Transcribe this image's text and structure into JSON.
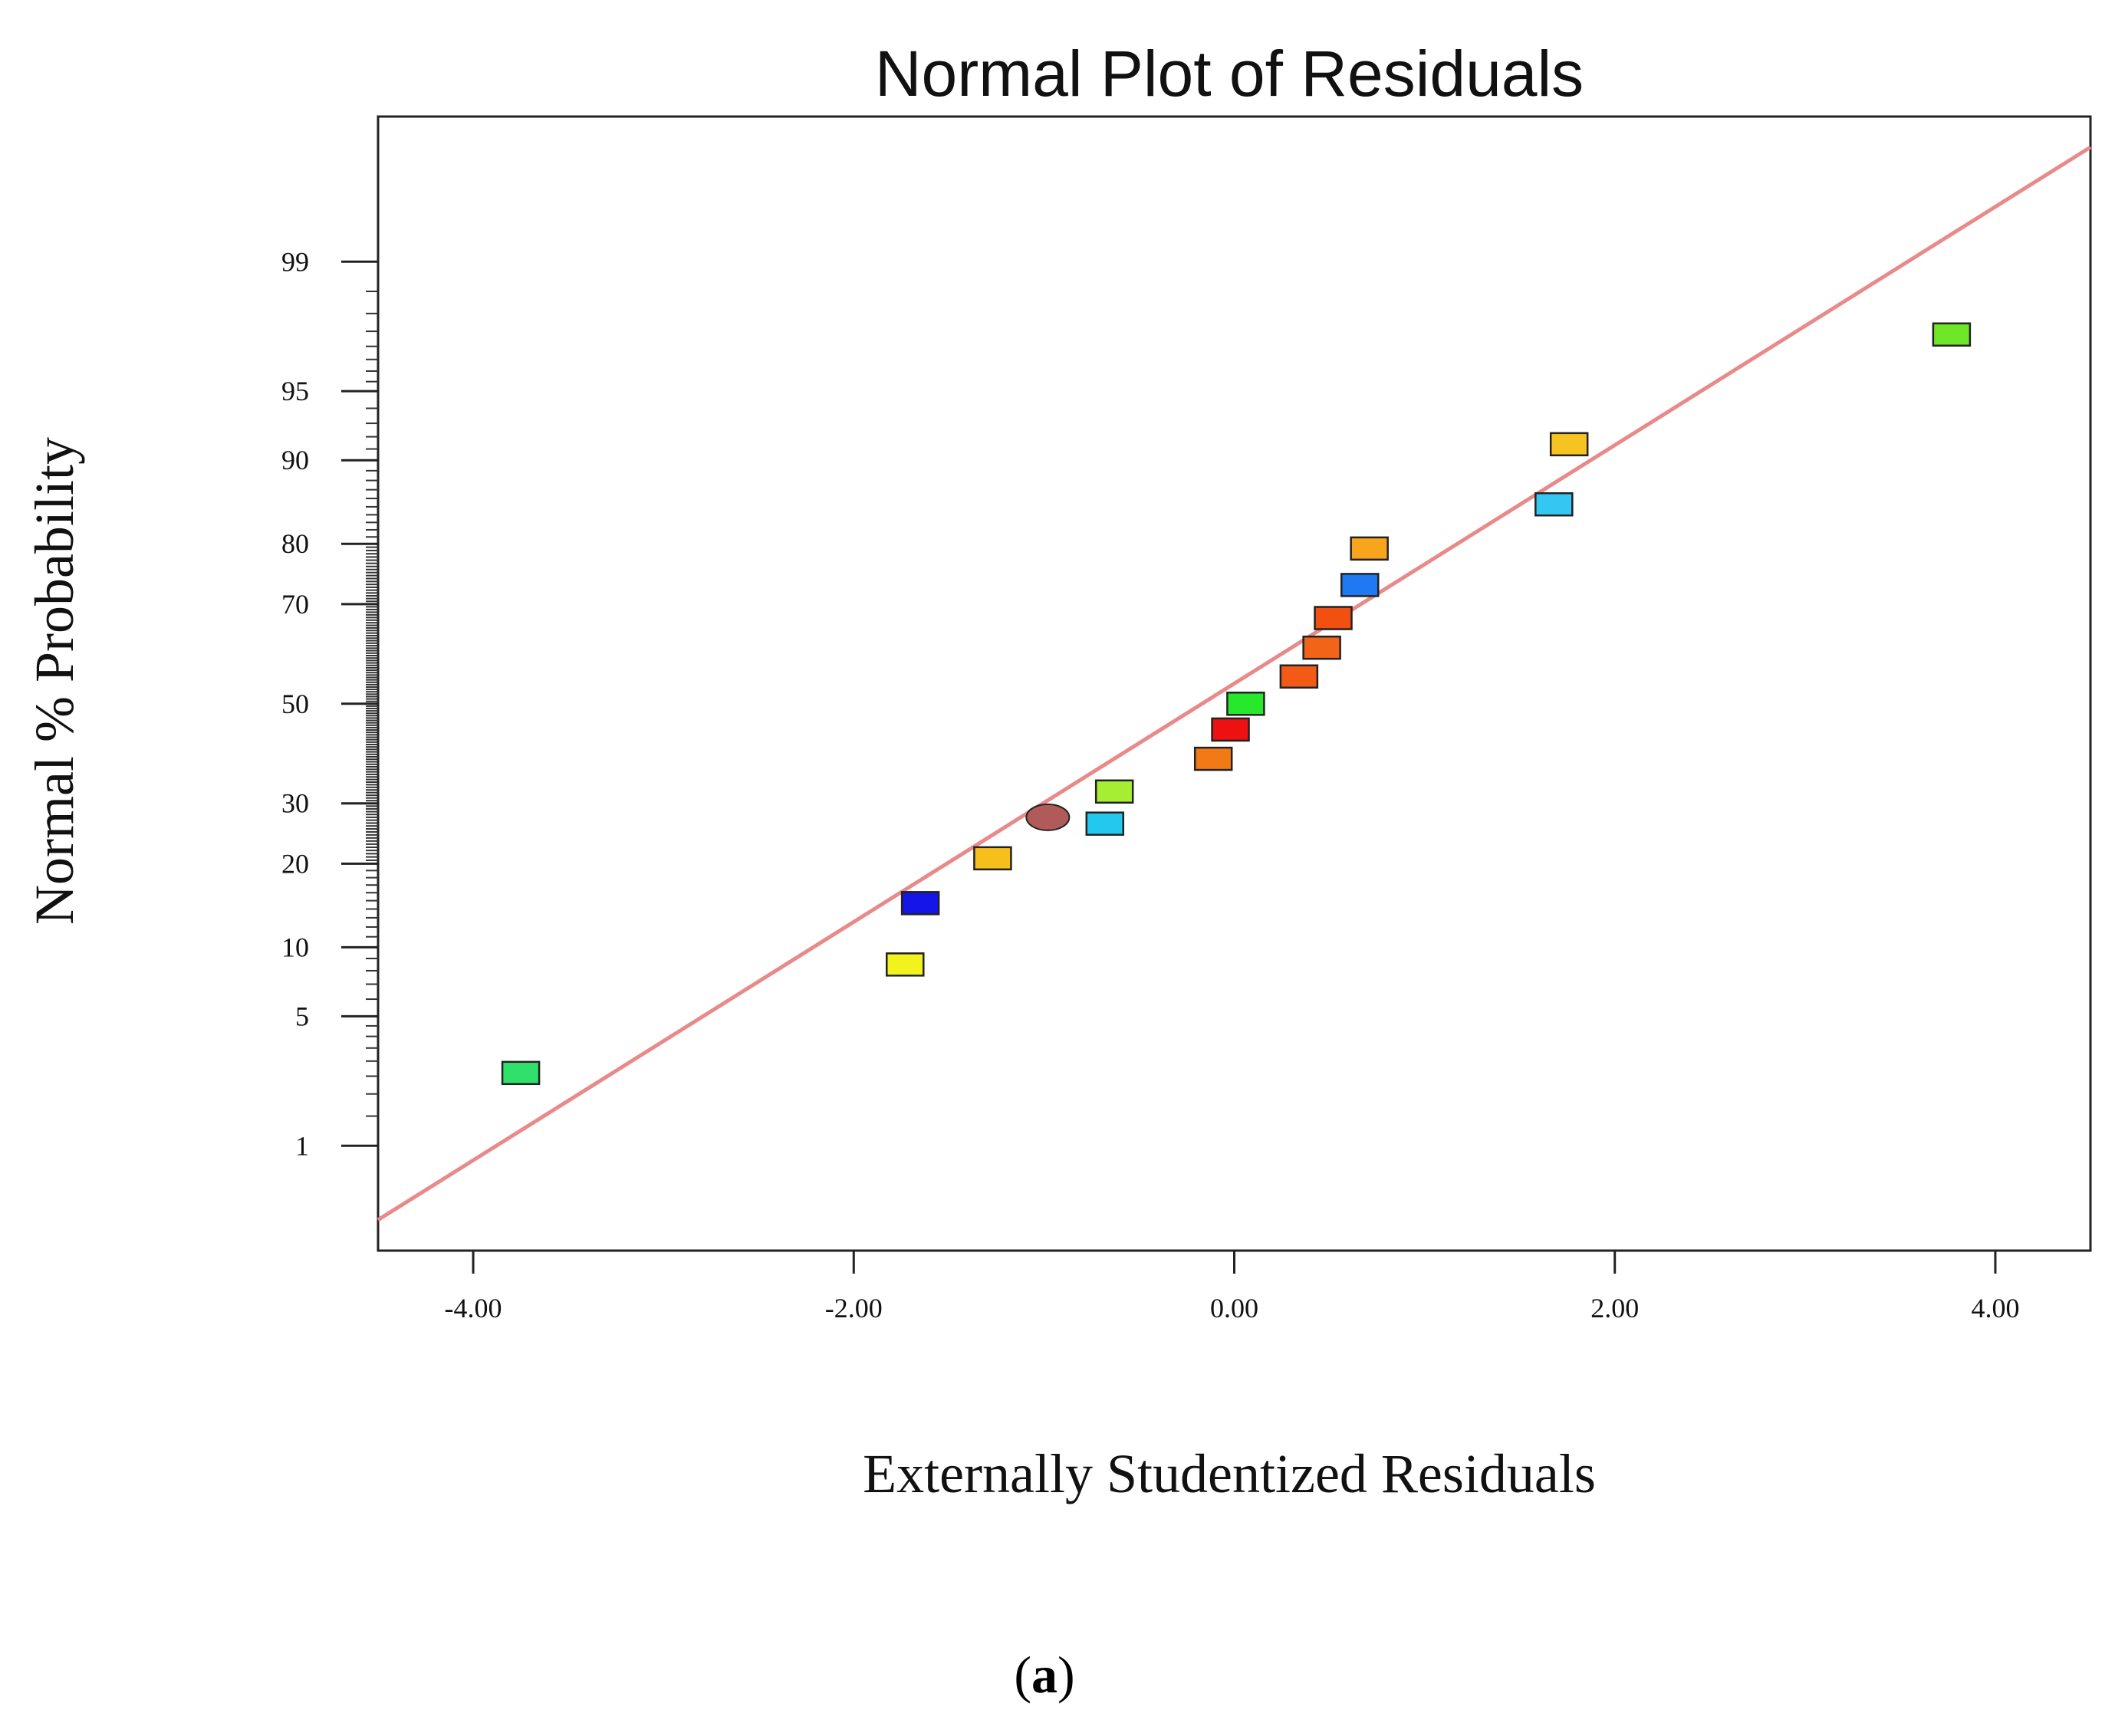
{
  "chart_data": {
    "type": "scatter",
    "title": "Normal Plot of Residuals",
    "xlabel": "Externally Studentized Residuals",
    "ylabel": "Normal % Probability",
    "caption": {
      "open": "(",
      "letter": "a",
      "close": ")"
    },
    "xlim": [
      -4.5,
      4.5
    ],
    "ylim_probability": [
      0.2,
      99.9
    ],
    "x_ticks": [
      -4.0,
      -2.0,
      0.0,
      2.0,
      4.0
    ],
    "x_tick_labels": [
      "-4.00",
      "-2.00",
      "0.00",
      "2.00",
      "4.00"
    ],
    "y_ticks": [
      1,
      5,
      10,
      20,
      30,
      50,
      70,
      80,
      90,
      95,
      99
    ],
    "y_tick_labels": [
      "1",
      "5",
      "10",
      "20",
      "30",
      "50",
      "70",
      "80",
      "90",
      "95",
      "99"
    ],
    "grid": false,
    "reference_line": {
      "x": [
        -4.5,
        4.5
      ],
      "y": [
        0.33,
        99.83
      ],
      "color": "#e98a8a"
    },
    "points": [
      {
        "x": -3.75,
        "y": 2.6,
        "color": "#2fe06a",
        "shape": "rect"
      },
      {
        "x": -1.73,
        "y": 8.5,
        "color": "#f2f21f",
        "shape": "rect"
      },
      {
        "x": -1.65,
        "y": 14.7,
        "color": "#1515e8",
        "shape": "rect"
      },
      {
        "x": -1.27,
        "y": 20.8,
        "color": "#f7bf1c",
        "shape": "rect"
      },
      {
        "x": -0.98,
        "y": 27.5,
        "color": "#b05a5a",
        "shape": "ellipse"
      },
      {
        "x": -0.68,
        "y": 26.4,
        "color": "#22c8ee",
        "shape": "rect"
      },
      {
        "x": -0.63,
        "y": 32.2,
        "color": "#a6ee33",
        "shape": "rect"
      },
      {
        "x": -0.11,
        "y": 38.6,
        "color": "#f27a16",
        "shape": "rect"
      },
      {
        "x": -0.02,
        "y": 44.6,
        "color": "#ee1111",
        "shape": "rect"
      },
      {
        "x": 0.06,
        "y": 50.0,
        "color": "#27e82b",
        "shape": "rect"
      },
      {
        "x": 0.34,
        "y": 55.7,
        "color": "#f25a16",
        "shape": "rect"
      },
      {
        "x": 0.46,
        "y": 61.6,
        "color": "#f26418",
        "shape": "rect"
      },
      {
        "x": 0.52,
        "y": 67.4,
        "color": "#f25010",
        "shape": "rect"
      },
      {
        "x": 0.66,
        "y": 73.4,
        "color": "#1f79f2",
        "shape": "rect"
      },
      {
        "x": 0.71,
        "y": 79.3,
        "color": "#f7a51c",
        "shape": "rect"
      },
      {
        "x": 1.68,
        "y": 85.3,
        "color": "#33c7f2",
        "shape": "rect"
      },
      {
        "x": 1.76,
        "y": 91.4,
        "color": "#f7c320",
        "shape": "rect"
      },
      {
        "x": 3.77,
        "y": 97.4,
        "color": "#6fe627",
        "shape": "rect"
      }
    ]
  }
}
